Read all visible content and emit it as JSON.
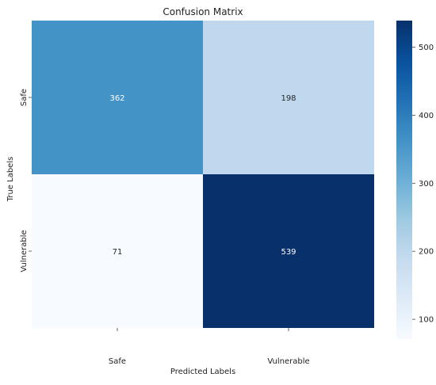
{
  "chart_data": {
    "type": "heatmap",
    "title": "Confusion Matrix",
    "xlabel": "Predicted Labels",
    "ylabel": "True Labels",
    "x_categories": [
      "Safe",
      "Vulnerable"
    ],
    "y_categories": [
      "Safe",
      "Vulnerable"
    ],
    "values": [
      [
        362,
        198
      ],
      [
        71,
        539
      ]
    ],
    "colormap": "Blues",
    "colors": {
      "low": "#f7fbff",
      "mid": "#6baed6",
      "high": "#08306b"
    },
    "colorbar": {
      "range": [
        71,
        539
      ],
      "ticks": [
        100,
        200,
        300,
        400,
        500
      ]
    },
    "grid": false,
    "legend": "colorbar-right"
  }
}
